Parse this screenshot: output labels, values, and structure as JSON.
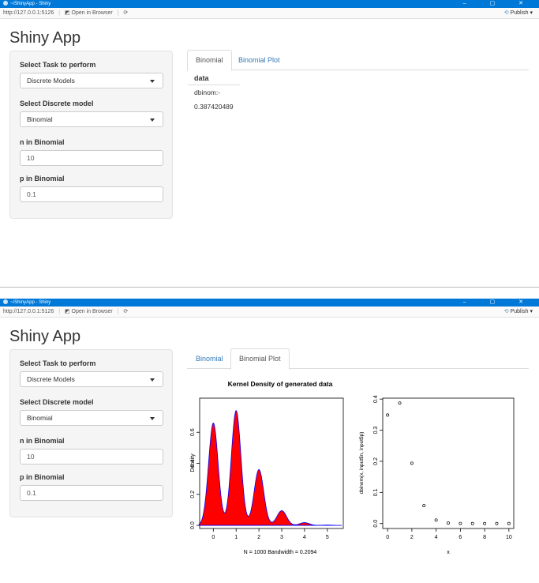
{
  "window": {
    "title": "~/ShinyApp - Shiny",
    "url": "http://127.0.0.1:5126",
    "open_in_browser": "Open in Browser",
    "publish": "Publish"
  },
  "app": {
    "title": "Shiny App",
    "sidebar": {
      "task_label": "Select Task to perform",
      "task_value": "Discrete Models",
      "model_label": "Select Discrete model",
      "model_value": "Binomial",
      "n_label": "n in Binomial",
      "n_value": "10",
      "p_label": "p in Binomial",
      "p_value": "0.1"
    },
    "tabs": [
      "Binomial",
      "Binomial Plot"
    ]
  },
  "table": {
    "header": "data",
    "rows": [
      "dbinom:-",
      "0.387420489"
    ]
  },
  "chart_data": [
    {
      "type": "area",
      "title": "Kernel Density of generated data",
      "xlabel": "N = 1000   Bandwidth = 0.2094",
      "ylabel": "Density",
      "x_ticks": [
        "0",
        "1",
        "2",
        "3",
        "4",
        "5"
      ],
      "y_ticks": [
        "0.0",
        "0.2",
        "0.4",
        "0.6"
      ],
      "xlim": [
        -0.6,
        5.7
      ],
      "ylim": [
        -0.02,
        0.82
      ],
      "fill_color": "#ff0000",
      "line_color": "#0000ff",
      "peaks": [
        {
          "x": 0,
          "density": 0.66
        },
        {
          "x": 1,
          "density": 0.74
        },
        {
          "x": 2,
          "density": 0.36
        },
        {
          "x": 3,
          "density": 0.095
        },
        {
          "x": 4,
          "density": 0.018
        },
        {
          "x": 5,
          "density": 0.002
        }
      ],
      "bandwidth": 0.2094
    },
    {
      "type": "scatter",
      "xlabel": "x",
      "ylabel": "dbinom(x, input$n, input$p)",
      "x_ticks": [
        "0",
        "2",
        "4",
        "6",
        "8",
        "10"
      ],
      "y_ticks": [
        "0.0",
        "0.1",
        "0.2",
        "0.3",
        "0.4"
      ],
      "xlim": [
        -0.4,
        10.4
      ],
      "ylim": [
        -0.016,
        0.403
      ],
      "x": [
        0,
        1,
        2,
        3,
        4,
        5,
        6,
        7,
        8,
        9,
        10
      ],
      "y": [
        0.3487,
        0.3874,
        0.1937,
        0.0574,
        0.0112,
        0.0015,
        0.0001,
        0.0,
        0.0,
        0.0,
        0.0
      ]
    }
  ]
}
